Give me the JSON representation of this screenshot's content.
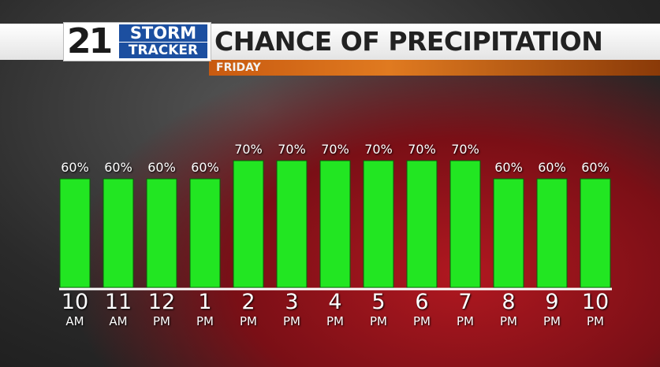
{
  "logo": {
    "number": "21",
    "line1": "STORM",
    "line2": "TRACKER"
  },
  "chart_data": {
    "type": "bar",
    "title": "CHANCE OF PRECIPITATION",
    "subtitle": "FRIDAY",
    "categories": [
      "10 AM",
      "11 AM",
      "12 PM",
      "1 PM",
      "2 PM",
      "3 PM",
      "4 PM",
      "5 PM",
      "6 PM",
      "7 PM",
      "8 PM",
      "9 PM",
      "10 PM"
    ],
    "values": [
      60,
      60,
      60,
      60,
      70,
      70,
      70,
      70,
      70,
      70,
      60,
      60,
      60
    ],
    "value_labels": [
      "60%",
      "60%",
      "60%",
      "60%",
      "70%",
      "70%",
      "70%",
      "70%",
      "70%",
      "70%",
      "60%",
      "60%",
      "60%"
    ],
    "color": "#22e622"
  }
}
